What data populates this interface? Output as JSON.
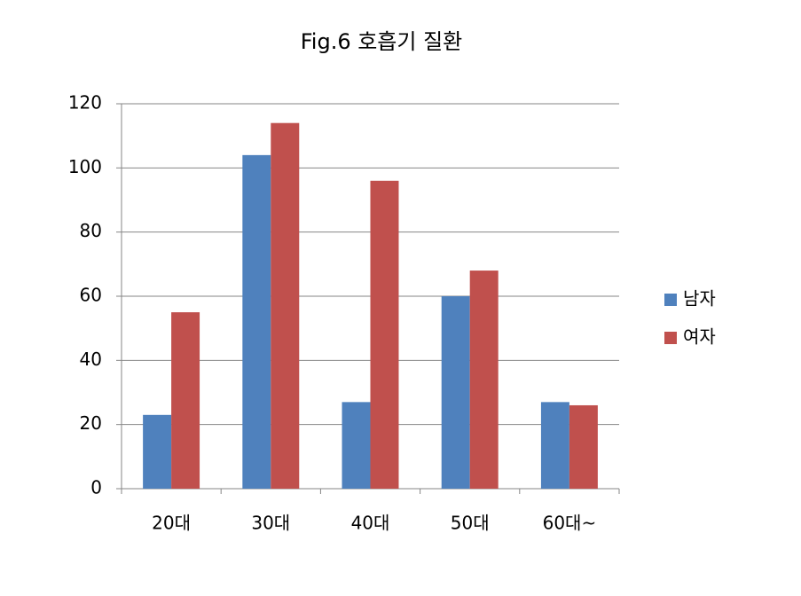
{
  "chart_data": {
    "type": "bar",
    "title": "Fig.6 호흡기 질환",
    "categories": [
      "20대",
      "30대",
      "40대",
      "50대",
      "60대~"
    ],
    "series": [
      {
        "name": "남자",
        "color": "#4f81bd",
        "values": [
          23,
          104,
          27,
          60,
          27
        ]
      },
      {
        "name": "여자",
        "color": "#c0504d",
        "values": [
          55,
          114,
          96,
          68,
          26
        ]
      }
    ],
    "ylim": [
      0,
      120
    ],
    "yticks": [
      0,
      20,
      40,
      60,
      80,
      100,
      120
    ],
    "grid": true,
    "legend": "right"
  }
}
